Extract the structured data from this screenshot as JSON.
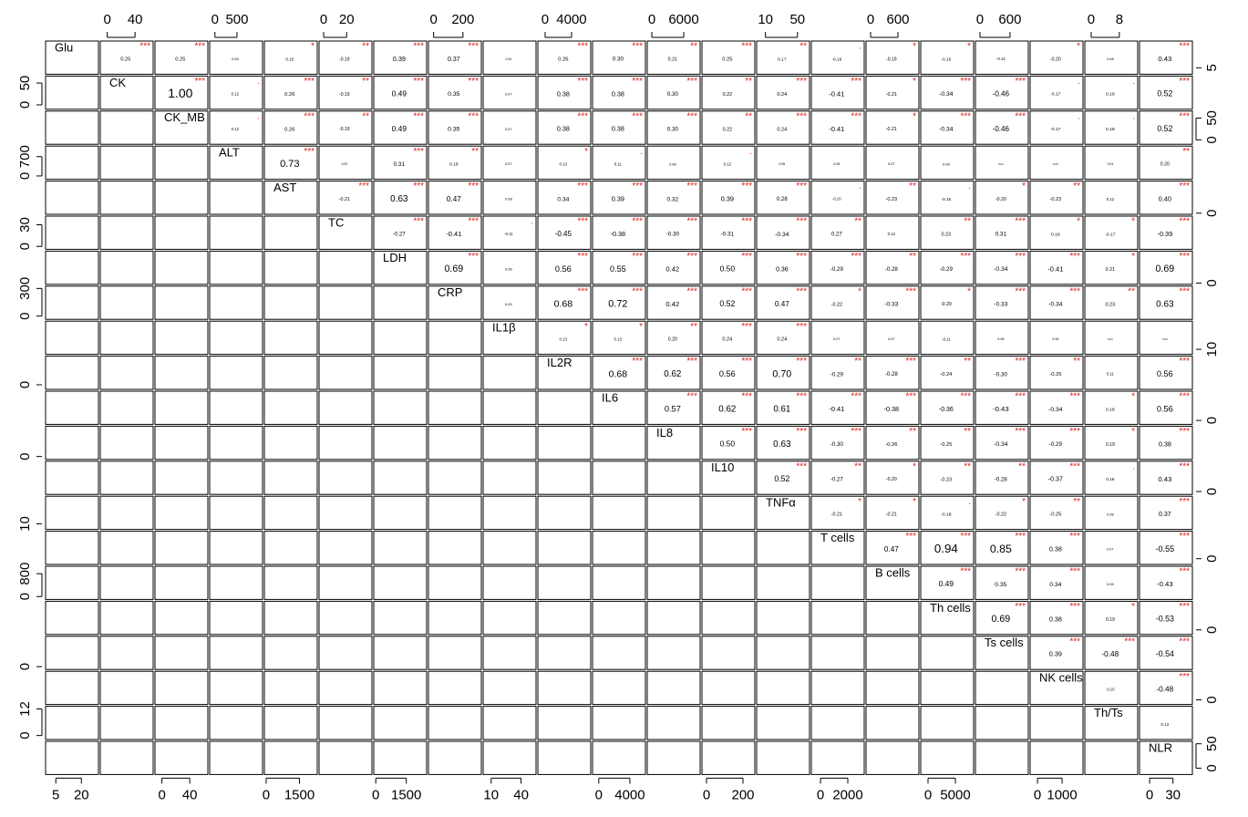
{
  "chart_data": {
    "type": "correlation_matrix",
    "variables": [
      {
        "name": "Glu",
        "lim": [
          -1,
          30
        ],
        "xticks": [
          5,
          20
        ],
        "yticks": [
          5
        ]
      },
      {
        "name": "CK",
        "lim": [
          -10,
          66
        ],
        "xticks": [
          0,
          40
        ],
        "yticks": [
          0,
          50
        ]
      },
      {
        "name": "CK_MB",
        "lim": [
          -10,
          66
        ],
        "xticks": [
          0,
          40
        ],
        "yticks": [
          0,
          50
        ]
      },
      {
        "name": "ALT",
        "lim": [
          -120,
          1080
        ],
        "xticks": [
          0,
          500
        ],
        "yticks": [
          0,
          700
        ]
      },
      {
        "name": "AST",
        "lim": [
          -80,
          2300
        ],
        "xticks": [
          0,
          1500
        ],
        "yticks": [
          0
        ]
      },
      {
        "name": "TC",
        "lim": [
          -4,
          42
        ],
        "xticks": [
          0,
          20
        ],
        "yticks": [
          0,
          30
        ]
      },
      {
        "name": "LDH",
        "lim": [
          -100,
          2500
        ],
        "xticks": [
          0,
          1500
        ],
        "yticks": [
          0
        ]
      },
      {
        "name": "CRP",
        "lim": [
          -35,
          325
        ],
        "xticks": [
          0,
          200
        ],
        "yticks": [
          0,
          300
        ]
      },
      {
        "name": "IL1β",
        "lim": [
          2,
          55
        ],
        "xticks": [
          10,
          40
        ],
        "yticks": [
          10
        ]
      },
      {
        "name": "IL2R",
        "lim": [
          -1100,
          6900
        ],
        "xticks": [
          0,
          4000
        ],
        "yticks": [
          0
        ]
      },
      {
        "name": "IL6",
        "lim": [
          -800,
          6000
        ],
        "xticks": [
          0,
          4000
        ],
        "yticks": [
          0
        ]
      },
      {
        "name": "IL8",
        "lim": [
          -860,
          9080
        ],
        "xticks": [
          0,
          6000
        ],
        "yticks": [
          0
        ]
      },
      {
        "name": "IL10",
        "lim": [
          -25,
          265
        ],
        "xticks": [
          0,
          200
        ],
        "yticks": [
          0
        ]
      },
      {
        "name": "TNFα",
        "lim": [
          -1,
          65
        ],
        "xticks": [
          10,
          50
        ],
        "yticks": [
          10
        ]
      },
      {
        "name": "T cells",
        "lim": [
          -670,
          3200
        ],
        "xticks": [
          0,
          2000
        ],
        "yticks": [
          0
        ]
      },
      {
        "name": "B cells",
        "lim": [
          -100,
          1060
        ],
        "xticks": [
          0,
          600
        ],
        "yticks": [
          0,
          800
        ]
      },
      {
        "name": "Th cells",
        "lim": [
          -1330,
          8330
        ],
        "xticks": [
          0,
          5000
        ],
        "yticks": [
          0
        ]
      },
      {
        "name": "Ts cells",
        "lim": [
          -90,
          965
        ],
        "xticks": [
          0,
          600
        ],
        "yticks": [
          0
        ]
      },
      {
        "name": "NK cells",
        "lim": [
          -300,
          1850
        ],
        "xticks": [
          0,
          1000
        ],
        "yticks": [
          0
        ]
      },
      {
        "name": "Th/Ts",
        "lim": [
          -1.8,
          13.2
        ],
        "xticks": [
          0,
          8
        ],
        "yticks": [
          0,
          12
        ]
      },
      {
        "name": "NLR",
        "lim": [
          -13,
          55
        ],
        "xticks": [
          0,
          30
        ],
        "yticks": [
          0,
          50
        ]
      }
    ],
    "correlations": [
      [
        0.25,
        0.25,
        0.08,
        0.15,
        -0.19,
        0.39,
        0.37,
        0.04,
        0.26,
        0.3,
        0.21,
        0.25,
        0.17,
        -0.16,
        -0.19,
        -0.16,
        -0.12,
        -0.2,
        0.08,
        0.43
      ],
      [
        1.0,
        0.12,
        0.26,
        -0.19,
        0.49,
        0.35,
        0.07,
        0.38,
        0.38,
        0.3,
        0.22,
        0.24,
        -0.41,
        -0.21,
        -0.34,
        -0.46,
        -0.17,
        0.18,
        0.52
      ],
      [
        0.12,
        0.26,
        -0.19,
        0.49,
        0.35,
        0.07,
        0.38,
        0.38,
        0.3,
        0.22,
        0.24,
        -0.41,
        -0.21,
        -0.34,
        -0.46,
        -0.17,
        0.18,
        0.52
      ],
      [
        0.73,
        0.03,
        0.31,
        0.18,
        0.07,
        0.13,
        0.11,
        0.08,
        0.12,
        0.05,
        0.05,
        0.07,
        0.08,
        0.01,
        0.0,
        0.03,
        0.2
      ],
      [
        -0.21,
        0.63,
        0.47,
        0.08,
        0.34,
        0.39,
        0.32,
        0.39,
        0.28,
        -0.1,
        -0.23,
        -0.15,
        -0.2,
        -0.23,
        0.12,
        0.4
      ],
      [
        -0.27,
        -0.41,
        -0.11,
        -0.45,
        -0.38,
        -0.3,
        -0.31,
        -0.34,
        0.27,
        0.12,
        0.23,
        0.31,
        0.18,
        -0.17,
        -0.39
      ],
      [
        0.69,
        0.09,
        0.56,
        0.55,
        0.42,
        0.5,
        0.36,
        -0.29,
        -0.28,
        -0.29,
        -0.34,
        -0.41,
        0.21,
        0.69
      ],
      [
        0.09,
        0.68,
        0.72,
        0.42,
        0.52,
        0.47,
        -0.22,
        -0.33,
        -0.2,
        -0.33,
        -0.34,
        0.23,
        0.63
      ],
      [
        0.13,
        0.13,
        0.2,
        0.24,
        0.24,
        0.07,
        0.07,
        -0.11,
        0.06,
        0.06,
        0.01,
        0.01
      ],
      [
        0.68,
        0.62,
        0.56,
        0.7,
        -0.29,
        -0.28,
        -0.24,
        -0.3,
        -0.25,
        0.11,
        0.56
      ],
      [
        0.57,
        0.62,
        0.61,
        -0.41,
        -0.38,
        -0.36,
        -0.43,
        -0.34,
        0.18,
        0.56
      ],
      [
        0.5,
        0.63,
        -0.3,
        -0.26,
        -0.25,
        -0.34,
        -0.29,
        0.19,
        0.38
      ],
      [
        0.52,
        -0.27,
        -0.2,
        -0.23,
        -0.28,
        -0.37,
        0.16,
        0.43
      ],
      [
        -0.21,
        -0.21,
        -0.18,
        -0.22,
        -0.25,
        0.08,
        0.37
      ],
      [
        0.47,
        0.94,
        0.85,
        0.38,
        0.07,
        -0.55
      ],
      [
        0.49,
        0.35,
        0.34,
        0.09,
        -0.43
      ],
      [
        0.69,
        0.38,
        0.19,
        -0.53
      ],
      [
        0.39,
        -0.48,
        -0.54
      ],
      [
        -0.1,
        -0.48
      ],
      [
        0.13
      ]
    ],
    "value_labels": [
      [
        "0.25",
        "0.25",
        "0.08",
        "0.15",
        "-0.19",
        "0.39",
        "0.37",
        "0.04",
        "0.26",
        "0.30",
        "0.21",
        "0.25",
        "0.17",
        "-0.16",
        "-0.19",
        "-0.16",
        "-0.12",
        "-0.20",
        "0.08",
        "0.43"
      ],
      [
        "1.00",
        "0.12",
        "0.26",
        "-0.19",
        "0.49",
        "0.35",
        "0.07",
        "0.38",
        "0.38",
        "0.30",
        "0.22",
        "0.24",
        "-0.41",
        "-0.21",
        "-0.34",
        "-0.46",
        "-0.17",
        "0.18",
        "0.52"
      ],
      [
        "0.12",
        "0.26",
        "-0.19",
        "0.49",
        "0.35",
        "0.07",
        "0.38",
        "0.38",
        "0.30",
        "0.22",
        "0.24",
        "-0.41",
        "-0.21",
        "-0.34",
        "-0.46",
        "-0.17",
        "0.18",
        "0.52"
      ],
      [
        "0.73",
        "0.03",
        "0.31",
        "0.18",
        "0.07",
        "0.13",
        "0.11",
        "0.08",
        "0.12",
        "0.05",
        "0.05",
        "0.07",
        "0.08",
        "0.01",
        "0.00",
        "0.03",
        "0.20"
      ],
      [
        "-0.21",
        "0.63",
        "0.47",
        "0.08",
        "0.34",
        "0.39",
        "0.32",
        "0.39",
        "0.28",
        "-0.10",
        "-0.23",
        "-0.15",
        "-0.20",
        "-0.23",
        "0.12",
        "0.40"
      ],
      [
        "-0.27",
        "-0.41",
        "-0.11",
        "-0.45",
        "-0.38",
        "-0.30",
        "-0.31",
        "-0.34",
        "0.27",
        "0.12",
        "0.23",
        "0.31",
        "0.18",
        "-0.17",
        "-0.39"
      ],
      [
        "0.69",
        "0.09",
        "0.56",
        "0.55",
        "0.42",
        "0.50",
        "0.36",
        "-0.29",
        "-0.28",
        "-0.29",
        "-0.34",
        "-0.41",
        "0.21",
        "0.69"
      ],
      [
        "0.09",
        "0.68",
        "0.72",
        "0.42",
        "0.52",
        "0.47",
        "-0.22",
        "-0.33",
        "-0.20",
        "-0.33",
        "-0.34",
        "0.23",
        "0.63"
      ],
      [
        "0.13",
        "0.13",
        "0.20",
        "0.24",
        "0.24",
        "0.07",
        "0.07",
        "-0.11",
        "0.06",
        "0.06",
        "0.01",
        "0.01"
      ],
      [
        "0.68",
        "0.62",
        "0.56",
        "0.70",
        "-0.29",
        "-0.28",
        "-0.24",
        "-0.30",
        "-0.25",
        "0.11",
        "0.56"
      ],
      [
        "0.57",
        "0.62",
        "0.61",
        "-0.41",
        "-0.38",
        "-0.36",
        "-0.43",
        "-0.34",
        "0.18",
        "0.56"
      ],
      [
        "0.50",
        "0.63",
        "-0.30",
        "-0.26",
        "-0.25",
        "-0.34",
        "-0.29",
        "0.19",
        "0.38"
      ],
      [
        "0.52",
        "-0.27",
        "-0.20",
        "-0.23",
        "-0.28",
        "-0.37",
        "0.16",
        "0.43"
      ],
      [
        "-0.21",
        "-0.21",
        "-0.18",
        "-0.22",
        "-0.25",
        "0.08",
        "0.37"
      ],
      [
        "0.47",
        "0.94",
        "0.85",
        "0.38",
        "0.07",
        "-0.55"
      ],
      [
        "0.49",
        "0.35",
        "0.34",
        "0.09",
        "-0.43"
      ],
      [
        "0.69",
        "0.38",
        "0.19",
        "-0.53"
      ],
      [
        "0.39",
        "-0.48",
        "-0.54"
      ],
      [
        "-0.10",
        "-0.48"
      ],
      [
        "0.13"
      ]
    ],
    "significance": [
      [
        "***",
        "***",
        null,
        "*",
        "**",
        "***",
        "***",
        null,
        "***",
        "***",
        "**",
        "***",
        "**",
        ".",
        "*",
        "*",
        null,
        "*",
        null,
        "***"
      ],
      [
        "***",
        ".",
        "***",
        "**",
        "***",
        "***",
        null,
        "***",
        "***",
        "***",
        "**",
        "***",
        "***",
        "*",
        "***",
        "***",
        ".",
        ".",
        "***"
      ],
      [
        ".",
        "***",
        "**",
        "***",
        "***",
        null,
        "***",
        "***",
        "***",
        "**",
        "***",
        "***",
        "*",
        "***",
        "***",
        ".",
        ".",
        "***"
      ],
      [
        "***",
        null,
        "***",
        "**",
        null,
        "*",
        ".",
        null,
        ".",
        null,
        null,
        null,
        null,
        null,
        null,
        null,
        "**"
      ],
      [
        "***",
        "***",
        "***",
        null,
        "***",
        "***",
        "***",
        "***",
        "***",
        ".",
        "**",
        ".",
        "*",
        "**",
        null,
        "***"
      ],
      [
        "***",
        "***",
        ".",
        "***",
        "***",
        "***",
        "***",
        "***",
        "**",
        null,
        "**",
        "***",
        "*",
        "*",
        "***"
      ],
      [
        "***",
        null,
        "***",
        "***",
        "***",
        "***",
        "***",
        "***",
        "**",
        "***",
        "***",
        "***",
        "*",
        "***"
      ],
      [
        null,
        "***",
        "***",
        "***",
        "***",
        "***",
        "*",
        "***",
        "*",
        "***",
        "***",
        "**",
        "***"
      ],
      [
        "*",
        "*",
        "**",
        "***",
        "***",
        null,
        null,
        null,
        null,
        null,
        null,
        null
      ],
      [
        "***",
        "***",
        "***",
        "***",
        "**",
        "***",
        "**",
        "***",
        "**",
        null,
        "***"
      ],
      [
        "***",
        "***",
        "***",
        "***",
        "***",
        "***",
        "***",
        "***",
        "*",
        "***"
      ],
      [
        "***",
        "***",
        "***",
        "**",
        "**",
        "***",
        "***",
        "*",
        "***"
      ],
      [
        "***",
        "**",
        "*",
        "**",
        "**",
        "***",
        ".",
        "***"
      ],
      [
        "*",
        "*",
        ".",
        "*",
        "**",
        null,
        "***"
      ],
      [
        "***",
        "***",
        "***",
        "***",
        null,
        "***"
      ],
      [
        "***",
        "***",
        "***",
        null,
        "***"
      ],
      [
        "***",
        "***",
        "*",
        "***"
      ],
      [
        "***",
        "***",
        "***"
      ],
      [
        null,
        "***"
      ],
      [
        null
      ]
    ],
    "star_color": "#e0201b"
  }
}
